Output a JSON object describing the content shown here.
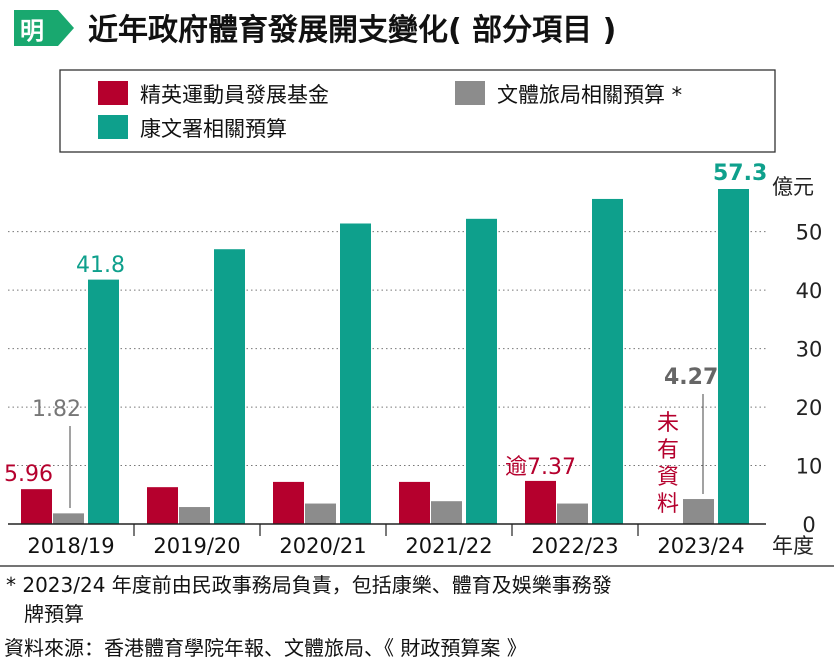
{
  "badge": {
    "text": "明"
  },
  "header": {
    "title": "近年政府體育發展開支變化( 部分項目 )"
  },
  "legend": {
    "items": [
      {
        "key": "elite",
        "label": "精英運動員發展基金",
        "color": "#b5002d"
      },
      {
        "key": "ctsb",
        "label": "文體旅局相關預算 *",
        "color": "#8c8c8c"
      },
      {
        "key": "lcsd",
        "label": "康文署相關預算",
        "color": "#0ea08c"
      }
    ]
  },
  "chart_data": {
    "type": "bar",
    "categories": [
      "2018/19",
      "2019/20",
      "2020/21",
      "2021/22",
      "2022/23",
      "2023/24"
    ],
    "series": [
      {
        "name": "精英運動員發展基金",
        "values": [
          5.96,
          6.3,
          7.2,
          7.2,
          7.37,
          null
        ]
      },
      {
        "name": "文體旅局相關預算 *",
        "values": [
          1.82,
          2.9,
          3.5,
          3.9,
          3.5,
          4.27
        ]
      },
      {
        "name": "康文署相關預算",
        "values": [
          41.8,
          47.0,
          51.4,
          52.2,
          55.6,
          57.3
        ]
      }
    ],
    "ylim": [
      0,
      57.3
    ],
    "yticks": [
      0,
      10,
      20,
      30,
      40,
      50
    ],
    "ylabel": "億元",
    "xlabel": "年度",
    "grid": true,
    "annotations": {
      "elite_2018": "5.96",
      "ctsb_2018": "1.82",
      "lcsd_2018": "41.8",
      "elite_2022": "逾7.37",
      "ctsb_2023": "4.27",
      "lcsd_2023": "57.3",
      "no_data_lines": [
        "未",
        "有",
        "資",
        "料"
      ]
    }
  },
  "notes": {
    "footnote_line1": "* 2023/24 年度前由民政事務局負責，包括康樂、體育及娛樂事務發",
    "footnote_line2": "牌預算",
    "source": "資料來源：香港體育學院年報、文體旅局、《 財政預算案 》"
  }
}
